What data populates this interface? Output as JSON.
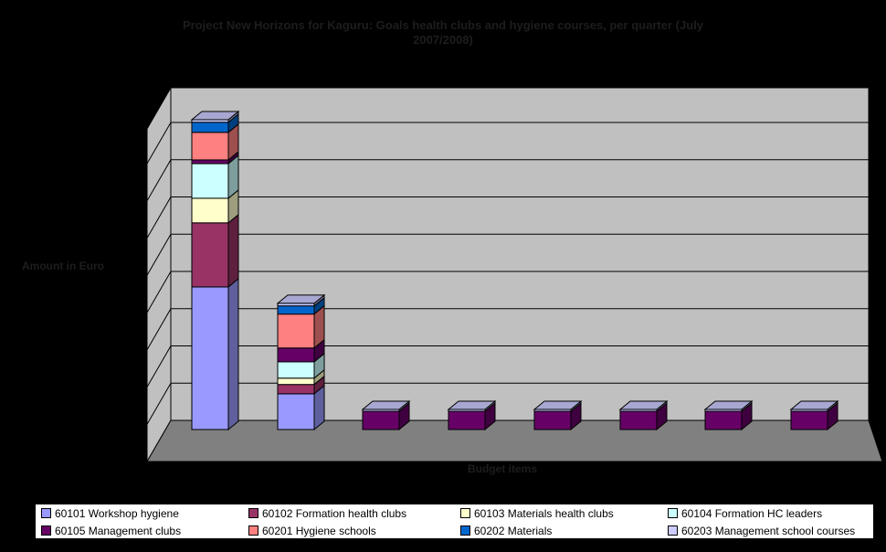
{
  "title": {
    "line1": "Project New Horizons for Kaguru: Goals health clubs and hygiene courses, per quarter (July",
    "line2": "2007/2008)"
  },
  "axes": {
    "y_title": "Amount in Euro",
    "x_title": "Budget items"
  },
  "colors": {
    "background": "#000000",
    "faint_text": "#1d1d1d",
    "back_wall": "#c0c0c0",
    "left_wall": "#c0c0c0",
    "floor": "#808080",
    "outline": "#000000",
    "legend_bg": "#ffffff",
    "legend_text": "#000000"
  },
  "chart_data": {
    "type": "bar",
    "variant": "3d-stacked-column",
    "title": "Project New Horizons for Kaguru: Goals health clubs and hygiene courses, per quarter (July 2007/2008)",
    "xlabel": "Budget items",
    "ylabel": "Amount in Euro",
    "legend_position": "bottom",
    "grid": true,
    "categories": [
      "",
      "",
      "",
      "",
      "",
      "",
      "",
      ""
    ],
    "category_labels_visible": false,
    "value_axis": {
      "tick_labels_visible": false,
      "unit_note": "axis labels not visible; values estimated in gridline units (1 unit = 1 gridline interval)",
      "gridline_intervals": 8,
      "ylim": [
        0,
        8
      ]
    },
    "series": [
      {
        "name": "60101 Workshop hygiene",
        "color": "#9999FF",
        "values": [
          3.83,
          0.96,
          0,
          0,
          0,
          0,
          0,
          0
        ]
      },
      {
        "name": "60102 Formation health clubs",
        "color": "#993366",
        "values": [
          1.72,
          0.25,
          0,
          0,
          0,
          0,
          0,
          0
        ]
      },
      {
        "name": "60103 Materials health clubs",
        "color": "#FFFFCC",
        "values": [
          0.66,
          0.17,
          0,
          0,
          0,
          0,
          0,
          0
        ]
      },
      {
        "name": "60104 Formation HC leaders",
        "color": "#CCFFFF",
        "values": [
          0.93,
          0.44,
          0,
          0,
          0,
          0,
          0,
          0
        ]
      },
      {
        "name": "60105 Management clubs",
        "color": "#660066",
        "values": [
          0.1,
          0.37,
          0.49,
          0.49,
          0.49,
          0.49,
          0.49,
          0.49
        ]
      },
      {
        "name": "60201 Hygiene schools",
        "color": "#FF8080",
        "values": [
          0.74,
          0.91,
          0,
          0,
          0,
          0,
          0,
          0
        ]
      },
      {
        "name": "60202 Materials",
        "color": "#0066CC",
        "values": [
          0.27,
          0.22,
          0,
          0,
          0,
          0,
          0,
          0
        ]
      },
      {
        "name": "60203 Management school courses",
        "color": "#CCCCFF",
        "values": [
          0.07,
          0.07,
          0.05,
          0.05,
          0.05,
          0.05,
          0.05,
          0.05
        ]
      }
    ]
  }
}
